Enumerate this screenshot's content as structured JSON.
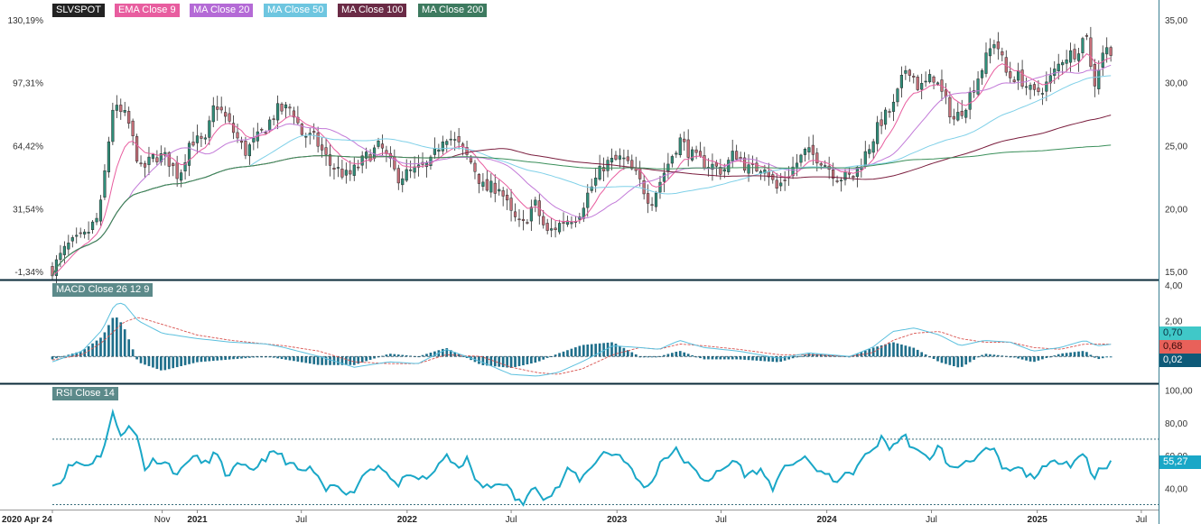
{
  "colors": {
    "up": "#2f8f7a",
    "down": "#c8707a",
    "ema9": "#e85d9f",
    "ma20": "#c27ad8",
    "ma50": "#7fd0e8",
    "ma100": "#7a1d3d",
    "ma200": "#3a8f5a",
    "macd": "#5bc0de",
    "signal": "#d9534f",
    "hist": "#1f6f8b",
    "rsi": "#1aa7c7",
    "frame": "#0b2b3a",
    "axis": "#3a7f92"
  },
  "legend": {
    "symbol": "SLVSPOT",
    "ema9": "EMA Close 9",
    "ma20": "MA Close 20",
    "ma50": "MA Close 50",
    "ma100": "MA Close 100",
    "ma200": "MA Close 200",
    "macd": "MACD Close 26 12 9",
    "rsi": "RSI Close 14"
  },
  "badges": {
    "macd": "0,70",
    "signal": "0,68",
    "hist": "0,02",
    "rsi": "55,27"
  },
  "chart_data": [
    {
      "type": "candlestick",
      "title": "SLVSPOT",
      "x_range": [
        "2020-04-24",
        "2025-07-31"
      ],
      "x_ticks": [
        "2020 Apr 24",
        "Nov",
        "2021",
        "Jul",
        "2022",
        "Jul",
        "2023",
        "Jul",
        "2024",
        "Jul",
        "2025",
        "Jul"
      ],
      "y_range": [
        14.5,
        36.0
      ],
      "y_ticks": [
        "35,00",
        "30,00",
        "25,00",
        "20,00",
        "15,00"
      ],
      "y_ticks_left": [
        "130,19%",
        "97,31%",
        "64,42%",
        "31,54%",
        "-1,34%"
      ],
      "close_approx": [
        [
          "2020-04-24",
          15.2
        ],
        [
          "2020-05-20",
          17.0
        ],
        [
          "2020-06-20",
          17.8
        ],
        [
          "2020-07-15",
          19.5
        ],
        [
          "2020-08-07",
          28.0
        ],
        [
          "2020-09-01",
          27.2
        ],
        [
          "2020-09-25",
          23.0
        ],
        [
          "2020-10-20",
          24.2
        ],
        [
          "2020-11-10",
          24.0
        ],
        [
          "2020-11-30",
          22.5
        ],
        [
          "2020-12-20",
          25.5
        ],
        [
          "2021-01-15",
          25.2
        ],
        [
          "2021-02-01",
          28.5
        ],
        [
          "2021-02-28",
          26.5
        ],
        [
          "2021-03-25",
          24.5
        ],
        [
          "2021-04-20",
          25.8
        ],
        [
          "2021-05-20",
          27.8
        ],
        [
          "2021-06-15",
          28.0
        ],
        [
          "2021-07-01",
          26.0
        ],
        [
          "2021-07-25",
          25.5
        ],
        [
          "2021-08-20",
          23.5
        ],
        [
          "2021-09-20",
          22.5
        ],
        [
          "2021-10-20",
          24.0
        ],
        [
          "2021-11-15",
          25.0
        ],
        [
          "2021-12-15",
          22.5
        ],
        [
          "2022-01-15",
          23.0
        ],
        [
          "2022-02-10",
          23.5
        ],
        [
          "2022-03-07",
          26.0
        ],
        [
          "2022-04-01",
          25.0
        ],
        [
          "2022-04-25",
          23.5
        ],
        [
          "2022-05-15",
          21.5
        ],
        [
          "2022-06-10",
          21.8
        ],
        [
          "2022-07-01",
          19.5
        ],
        [
          "2022-07-20",
          18.5
        ],
        [
          "2022-08-10",
          20.5
        ],
        [
          "2022-09-01",
          18.0
        ],
        [
          "2022-09-30",
          19.0
        ],
        [
          "2022-10-25",
          19.5
        ],
        [
          "2022-11-15",
          21.5
        ],
        [
          "2022-12-10",
          23.5
        ],
        [
          "2023-01-10",
          24.0
        ],
        [
          "2023-02-05",
          22.5
        ],
        [
          "2023-03-01",
          20.5
        ],
        [
          "2023-03-25",
          23.0
        ],
        [
          "2023-04-20",
          25.5
        ],
        [
          "2023-05-15",
          24.0
        ],
        [
          "2023-06-10",
          23.5
        ],
        [
          "2023-07-05",
          23.0
        ],
        [
          "2023-07-25",
          24.5
        ],
        [
          "2023-08-20",
          23.0
        ],
        [
          "2023-09-15",
          23.5
        ],
        [
          "2023-10-05",
          21.5
        ],
        [
          "2023-10-30",
          23.0
        ],
        [
          "2023-11-25",
          24.5
        ],
        [
          "2023-12-20",
          24.0
        ],
        [
          "2024-01-20",
          22.5
        ],
        [
          "2024-02-15",
          22.5
        ],
        [
          "2024-03-10",
          24.5
        ],
        [
          "2024-04-05",
          27.0
        ],
        [
          "2024-04-25",
          28.0
        ],
        [
          "2024-05-20",
          31.5
        ],
        [
          "2024-06-10",
          29.5
        ],
        [
          "2024-07-05",
          30.5
        ],
        [
          "2024-07-25",
          28.5
        ],
        [
          "2024-08-10",
          27.0
        ],
        [
          "2024-09-01",
          28.5
        ],
        [
          "2024-09-25",
          31.0
        ],
        [
          "2024-10-20",
          33.5
        ],
        [
          "2024-11-10",
          30.5
        ],
        [
          "2024-12-01",
          30.5
        ],
        [
          "2024-12-25",
          29.0
        ],
        [
          "2025-01-20",
          30.0
        ],
        [
          "2025-02-15",
          32.0
        ],
        [
          "2025-03-10",
          32.5
        ],
        [
          "2025-03-28",
          34.0
        ],
        [
          "2025-04-08",
          29.5
        ],
        [
          "2025-04-25",
          32.5
        ],
        [
          "2025-05-15",
          32.8
        ]
      ]
    },
    {
      "type": "line",
      "title": "MACD Close 26 12 9",
      "y_range": [
        -1.5,
        4.2
      ],
      "y_ticks": [
        "4,00",
        "2,00"
      ],
      "series": [
        {
          "name": "MACD",
          "last": 0.7
        },
        {
          "name": "Signal",
          "last": 0.68
        },
        {
          "name": "Histogram",
          "last": 0.02
        }
      ],
      "macd_approx": [
        [
          "2020-04-24",
          -0.3
        ],
        [
          "2020-06-15",
          0.3
        ],
        [
          "2020-07-20",
          1.5
        ],
        [
          "2020-08-10",
          2.9
        ],
        [
          "2020-08-25",
          3.0
        ],
        [
          "2020-09-20",
          2.0
        ],
        [
          "2020-11-01",
          1.3
        ],
        [
          "2021-01-01",
          1.0
        ],
        [
          "2021-03-01",
          0.8
        ],
        [
          "2021-05-01",
          0.7
        ],
        [
          "2021-06-01",
          0.5
        ],
        [
          "2021-08-01",
          0.0
        ],
        [
          "2021-10-01",
          -0.6
        ],
        [
          "2021-12-01",
          -0.3
        ],
        [
          "2022-01-20",
          -0.4
        ],
        [
          "2022-03-10",
          0.4
        ],
        [
          "2022-05-10",
          -0.3
        ],
        [
          "2022-07-01",
          -1.0
        ],
        [
          "2022-08-15",
          -1.1
        ],
        [
          "2022-09-20",
          -0.9
        ],
        [
          "2022-11-01",
          -0.3
        ],
        [
          "2022-12-25",
          0.6
        ],
        [
          "2023-02-10",
          0.5
        ],
        [
          "2023-03-15",
          0.4
        ],
        [
          "2023-04-20",
          0.9
        ],
        [
          "2023-06-01",
          0.5
        ],
        [
          "2023-08-01",
          0.3
        ],
        [
          "2023-10-10",
          -0.1
        ],
        [
          "2023-12-01",
          0.2
        ],
        [
          "2024-02-10",
          0.0
        ],
        [
          "2024-03-20",
          0.5
        ],
        [
          "2024-04-25",
          1.4
        ],
        [
          "2024-06-01",
          1.6
        ],
        [
          "2024-07-15",
          1.2
        ],
        [
          "2024-08-20",
          0.6
        ],
        [
          "2024-10-01",
          0.9
        ],
        [
          "2024-11-15",
          0.8
        ],
        [
          "2024-12-25",
          0.3
        ],
        [
          "2025-02-10",
          0.5
        ],
        [
          "2025-03-25",
          0.9
        ],
        [
          "2025-04-15",
          0.6
        ],
        [
          "2025-05-15",
          0.7
        ]
      ],
      "signal_approx": [
        [
          "2020-04-24",
          -0.2
        ],
        [
          "2020-06-15",
          0.1
        ],
        [
          "2020-07-20",
          0.8
        ],
        [
          "2020-08-25",
          1.9
        ],
        [
          "2020-09-20",
          2.2
        ],
        [
          "2020-11-01",
          1.8
        ],
        [
          "2021-01-01",
          1.2
        ],
        [
          "2021-03-01",
          0.9
        ],
        [
          "2021-05-01",
          0.7
        ],
        [
          "2021-06-01",
          0.6
        ],
        [
          "2021-08-01",
          0.3
        ],
        [
          "2021-10-01",
          -0.3
        ],
        [
          "2021-12-01",
          -0.4
        ],
        [
          "2022-01-20",
          -0.4
        ],
        [
          "2022-03-10",
          0.1
        ],
        [
          "2022-05-10",
          0.0
        ],
        [
          "2022-07-01",
          -0.6
        ],
        [
          "2022-08-15",
          -0.9
        ],
        [
          "2022-09-20",
          -1.0
        ],
        [
          "2022-11-01",
          -0.7
        ],
        [
          "2022-12-25",
          0.1
        ],
        [
          "2023-02-10",
          0.5
        ],
        [
          "2023-03-15",
          0.4
        ],
        [
          "2023-04-20",
          0.7
        ],
        [
          "2023-06-01",
          0.6
        ],
        [
          "2023-08-01",
          0.4
        ],
        [
          "2023-10-10",
          0.1
        ],
        [
          "2023-12-01",
          0.1
        ],
        [
          "2024-02-10",
          0.0
        ],
        [
          "2024-03-20",
          0.2
        ],
        [
          "2024-04-25",
          0.9
        ],
        [
          "2024-06-01",
          1.3
        ],
        [
          "2024-07-15",
          1.4
        ],
        [
          "2024-08-20",
          1.0
        ],
        [
          "2024-10-01",
          0.8
        ],
        [
          "2024-11-15",
          0.8
        ],
        [
          "2024-12-25",
          0.5
        ],
        [
          "2025-02-10",
          0.4
        ],
        [
          "2025-03-25",
          0.7
        ],
        [
          "2025-04-15",
          0.7
        ],
        [
          "2025-05-15",
          0.68
        ]
      ]
    },
    {
      "type": "line",
      "title": "RSI Close 14",
      "y_range": [
        27,
        103
      ],
      "y_ticks": [
        "100,00",
        "80,00",
        "60,00",
        "40,00"
      ],
      "overbought": 70,
      "oversold": 30,
      "series": [
        {
          "name": "RSI",
          "last": 55.27
        }
      ],
      "rsi_approx": [
        [
          "2020-04-24",
          44
        ],
        [
          "2020-05-05",
          42
        ],
        [
          "2020-05-20",
          52
        ],
        [
          "2020-06-05",
          56
        ],
        [
          "2020-06-20",
          54
        ],
        [
          "2020-07-05",
          57
        ],
        [
          "2020-07-20",
          62
        ],
        [
          "2020-08-07",
          85
        ],
        [
          "2020-08-20",
          74
        ],
        [
          "2020-09-05",
          77
        ],
        [
          "2020-09-20",
          71
        ],
        [
          "2020-10-01",
          52
        ],
        [
          "2020-10-20",
          58
        ],
        [
          "2020-11-10",
          55
        ],
        [
          "2020-11-30",
          48
        ],
        [
          "2020-12-20",
          60
        ],
        [
          "2021-01-15",
          55
        ],
        [
          "2021-02-01",
          62
        ],
        [
          "2021-02-20",
          48
        ],
        [
          "2021-03-15",
          54
        ],
        [
          "2021-04-05",
          50
        ],
        [
          "2021-04-25",
          58
        ],
        [
          "2021-05-20",
          62
        ],
        [
          "2021-06-10",
          55
        ],
        [
          "2021-07-01",
          50
        ],
        [
          "2021-07-20",
          52
        ],
        [
          "2021-08-10",
          38
        ],
        [
          "2021-09-01",
          43
        ],
        [
          "2021-09-25",
          36
        ],
        [
          "2021-10-20",
          50
        ],
        [
          "2021-11-15",
          55
        ],
        [
          "2021-12-10",
          42
        ],
        [
          "2022-01-10",
          47
        ],
        [
          "2022-02-05",
          45
        ],
        [
          "2022-03-07",
          60
        ],
        [
          "2022-03-25",
          53
        ],
        [
          "2022-04-15",
          57
        ],
        [
          "2022-05-05",
          42
        ],
        [
          "2022-05-25",
          40
        ],
        [
          "2022-06-15",
          45
        ],
        [
          "2022-07-10",
          33
        ],
        [
          "2022-07-25",
          30
        ],
        [
          "2022-08-10",
          44
        ],
        [
          "2022-08-30",
          33
        ],
        [
          "2022-09-20",
          40
        ],
        [
          "2022-10-10",
          52
        ],
        [
          "2022-10-30",
          45
        ],
        [
          "2022-11-20",
          55
        ],
        [
          "2022-12-10",
          62
        ],
        [
          "2023-01-10",
          60
        ],
        [
          "2023-02-05",
          45
        ],
        [
          "2023-02-25",
          40
        ],
        [
          "2023-03-20",
          58
        ],
        [
          "2023-04-15",
          63
        ],
        [
          "2023-05-10",
          52
        ],
        [
          "2023-06-05",
          45
        ],
        [
          "2023-07-01",
          50
        ],
        [
          "2023-07-25",
          58
        ],
        [
          "2023-08-15",
          47
        ],
        [
          "2023-09-05",
          52
        ],
        [
          "2023-10-01",
          40
        ],
        [
          "2023-10-25",
          55
        ],
        [
          "2023-11-20",
          58
        ],
        [
          "2023-12-15",
          52
        ],
        [
          "2024-01-10",
          45
        ],
        [
          "2024-02-10",
          48
        ],
        [
          "2024-03-10",
          60
        ],
        [
          "2024-04-05",
          70
        ],
        [
          "2024-04-20",
          65
        ],
        [
          "2024-05-15",
          72
        ],
        [
          "2024-06-05",
          62
        ],
        [
          "2024-06-25",
          58
        ],
        [
          "2024-07-15",
          66
        ],
        [
          "2024-08-05",
          50
        ],
        [
          "2024-08-25",
          56
        ],
        [
          "2024-09-20",
          60
        ],
        [
          "2024-10-15",
          64
        ],
        [
          "2024-11-05",
          50
        ],
        [
          "2024-11-30",
          52
        ],
        [
          "2024-12-20",
          47
        ],
        [
          "2025-01-15",
          52
        ],
        [
          "2025-02-10",
          58
        ],
        [
          "2025-03-01",
          55
        ],
        [
          "2025-03-25",
          62
        ],
        [
          "2025-04-08",
          46
        ],
        [
          "2025-04-25",
          54
        ],
        [
          "2025-05-15",
          55.27
        ]
      ]
    }
  ]
}
